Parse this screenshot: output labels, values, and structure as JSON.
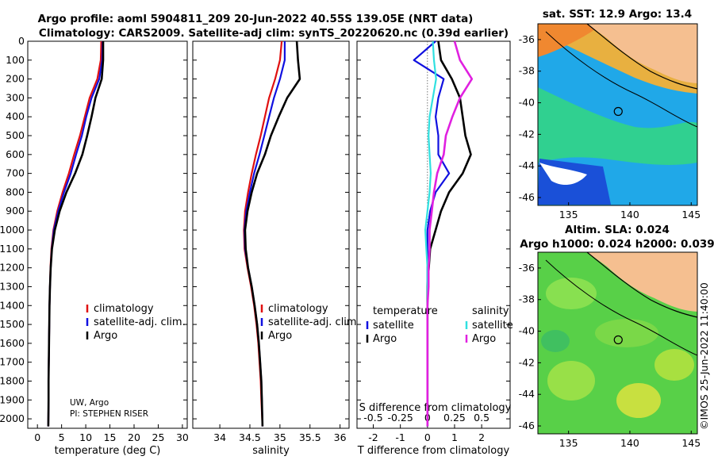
{
  "header": {
    "line1": "Argo profile: aoml 5904811_209 20-Jun-2022 40.55S 139.05E (NRT data)",
    "line2": "Climatology: CARS2009. Satellite-adj clim: synTS_20220620.nc (0.39d earlier)"
  },
  "credit": {
    "line1": "UW, Argo",
    "line2": "PI: STEPHEN RISER"
  },
  "timestamp": "©IMOS 25-Jun-2022 11:40:00",
  "colors": {
    "climatology": "#e01010",
    "satellite": "#1010e0",
    "argo": "#000000",
    "sat_s": "#30e0e0",
    "argo_s": "#e020e0"
  },
  "depth_ticks": [
    "0",
    "100",
    "200",
    "300",
    "400",
    "500",
    "600",
    "700",
    "800",
    "900",
    "1000",
    "1100",
    "1200",
    "1300",
    "1400",
    "1500",
    "1600",
    "1700",
    "1800",
    "1900",
    "2000"
  ],
  "chart_data": [
    {
      "type": "line",
      "xlabel": "temperature (deg C)",
      "xticks": [
        "0",
        "5",
        "10",
        "15",
        "20",
        "25",
        "30"
      ],
      "xlim": [
        -2,
        31
      ],
      "ylim": [
        2050,
        0
      ],
      "legend": [
        "climatology",
        "satellite-adj. clim.",
        "Argo"
      ],
      "series": [
        {
          "name": "climatology",
          "x": [
            13.2,
            13.1,
            12.4,
            10.8,
            9.8,
            8.8,
            7.6,
            6.5,
            5.2,
            4.1,
            3.3,
            2.9,
            2.7,
            2.6,
            2.5,
            2.45,
            2.4,
            2.35,
            2.3,
            2.3,
            2.25
          ],
          "y": [
            0,
            100,
            200,
            300,
            400,
            500,
            600,
            700,
            800,
            900,
            1000,
            1100,
            1200,
            1300,
            1400,
            1500,
            1600,
            1700,
            1800,
            1900,
            2040
          ]
        },
        {
          "name": "satellite-adj. clim.",
          "x": [
            13.5,
            13.4,
            12.8,
            11.2,
            10.1,
            9.2,
            8.0,
            6.9,
            5.5,
            4.3,
            3.4,
            2.95,
            2.75,
            2.6,
            2.5,
            2.45,
            2.4,
            2.35,
            2.3,
            2.3,
            2.25
          ],
          "y": [
            0,
            100,
            200,
            300,
            400,
            500,
            600,
            700,
            800,
            900,
            1000,
            1100,
            1200,
            1300,
            1400,
            1500,
            1600,
            1700,
            1800,
            1900,
            2040
          ]
        },
        {
          "name": "Argo",
          "x": [
            13.6,
            13.6,
            13.3,
            12.0,
            11.2,
            10.3,
            9.3,
            7.8,
            6.0,
            4.6,
            3.6,
            3.0,
            2.75,
            2.6,
            2.5,
            2.45,
            2.4,
            2.35,
            2.3,
            2.3,
            2.25
          ],
          "y": [
            0,
            100,
            200,
            300,
            400,
            500,
            600,
            700,
            800,
            900,
            1000,
            1100,
            1200,
            1300,
            1400,
            1500,
            1600,
            1700,
            1800,
            1900,
            2040
          ]
        }
      ]
    },
    {
      "type": "line",
      "xlabel": "salinity",
      "xticks": [
        "34",
        "34.5",
        "35",
        "35.5",
        "36"
      ],
      "xlim": [
        33.55,
        36.15
      ],
      "ylim": [
        2050,
        0
      ],
      "legend": [
        "climatology",
        "satellite-adj. clim.",
        "Argo"
      ],
      "series": [
        {
          "name": "climatology",
          "x": [
            35.03,
            35.0,
            34.92,
            34.82,
            34.75,
            34.68,
            34.6,
            34.53,
            34.47,
            34.42,
            34.4,
            34.41,
            34.46,
            34.52,
            34.57,
            34.61,
            34.64,
            34.66,
            34.68,
            34.69,
            34.71
          ],
          "y": [
            0,
            100,
            200,
            300,
            400,
            500,
            600,
            700,
            800,
            900,
            1000,
            1100,
            1200,
            1300,
            1400,
            1500,
            1600,
            1700,
            1800,
            1900,
            2040
          ]
        },
        {
          "name": "satellite-adj. clim.",
          "x": [
            35.08,
            35.08,
            35.0,
            34.9,
            34.82,
            34.74,
            34.66,
            34.57,
            34.5,
            34.44,
            34.41,
            34.42,
            34.47,
            34.53,
            34.58,
            34.62,
            34.65,
            34.67,
            34.69,
            34.7,
            34.71
          ],
          "y": [
            0,
            100,
            200,
            300,
            400,
            500,
            600,
            700,
            800,
            900,
            1000,
            1100,
            1200,
            1300,
            1400,
            1500,
            1600,
            1700,
            1800,
            1900,
            2040
          ]
        },
        {
          "name": "Argo",
          "x": [
            35.28,
            35.3,
            35.33,
            35.12,
            34.98,
            34.85,
            34.75,
            34.62,
            34.53,
            34.46,
            34.42,
            34.43,
            34.47,
            34.53,
            34.58,
            34.62,
            34.65,
            34.67,
            34.69,
            34.7,
            34.71
          ],
          "y": [
            0,
            100,
            200,
            300,
            400,
            500,
            600,
            700,
            800,
            900,
            1000,
            1100,
            1200,
            1300,
            1400,
            1500,
            1600,
            1700,
            1800,
            1900,
            2040
          ]
        }
      ]
    },
    {
      "type": "line",
      "xlabel": "T difference from climatology",
      "x2label": "S difference from climatology",
      "xticks": [
        "-2",
        "-1",
        "0",
        "1",
        "2"
      ],
      "x2ticks": [
        "-0.5",
        "-0.25",
        "0",
        "0.25",
        "0.5"
      ],
      "xlim": [
        -2.6,
        3.05
      ],
      "ylim": [
        2050,
        0
      ],
      "legend_titles": [
        "temperature",
        "salinity"
      ],
      "legend_t": [
        "satellite",
        "Argo"
      ],
      "legend_s": [
        "satellite",
        "Argo"
      ],
      "series": [
        {
          "name": "satellite",
          "axis": "temperature",
          "x": [
            0.3,
            -0.5,
            0.6,
            0.4,
            0.3,
            0.4,
            0.4,
            0.8,
            0.3,
            0.1,
            0.0,
            0.0,
            0.0,
            0.0,
            0.0,
            0.0,
            0.0,
            0.0,
            0.0,
            0.0,
            0.0
          ],
          "y": [
            0,
            100,
            200,
            300,
            400,
            500,
            600,
            700,
            800,
            900,
            1000,
            1100,
            1200,
            1300,
            1400,
            1500,
            1600,
            1700,
            1800,
            1900,
            2040
          ]
        },
        {
          "name": "Argo",
          "axis": "temperature",
          "x": [
            0.4,
            0.5,
            0.9,
            1.2,
            1.3,
            1.4,
            1.6,
            1.3,
            0.8,
            0.5,
            0.3,
            0.1,
            0.05,
            0.0,
            0.0,
            0.0,
            0.0,
            0.0,
            0.0,
            0.0,
            0.0
          ],
          "y": [
            0,
            100,
            200,
            300,
            400,
            500,
            600,
            700,
            800,
            900,
            1000,
            1100,
            1200,
            1300,
            1400,
            1500,
            1600,
            1700,
            1800,
            1900,
            2040
          ]
        },
        {
          "name": "satellite",
          "axis": "salinity",
          "x": [
            0.05,
            0.06,
            0.08,
            0.05,
            0.02,
            0.01,
            0.02,
            0.03,
            0.02,
            0.0,
            -0.02,
            -0.01,
            0.0,
            0.0,
            0.0,
            0.0,
            0.0,
            0.0,
            0.0,
            0.0,
            0.0
          ],
          "y": [
            0,
            100,
            200,
            300,
            400,
            500,
            600,
            700,
            800,
            900,
            1000,
            1100,
            1200,
            1300,
            1400,
            1500,
            1600,
            1700,
            1800,
            1900,
            2040
          ]
        },
        {
          "name": "Argo",
          "axis": "salinity",
          "x": [
            0.25,
            0.3,
            0.41,
            0.3,
            0.23,
            0.17,
            0.15,
            0.09,
            0.06,
            0.04,
            0.02,
            0.02,
            0.01,
            0.01,
            0.0,
            0.0,
            0.0,
            0.0,
            0.0,
            0.0,
            0.0
          ],
          "y": [
            0,
            100,
            200,
            300,
            400,
            500,
            600,
            700,
            800,
            900,
            1000,
            1100,
            1200,
            1300,
            1400,
            1500,
            1600,
            1700,
            1800,
            1900,
            2040
          ]
        }
      ]
    },
    {
      "type": "heatmap",
      "title": "sat. SST: 12.9 Argo: 13.4",
      "xticks": [
        "135",
        "140",
        "145"
      ],
      "yticks": [
        "-36",
        "-38",
        "-40",
        "-42",
        "-44",
        "-46"
      ],
      "xlim": [
        132.5,
        145.5
      ],
      "ylim": [
        -46.5,
        -35
      ],
      "float_position": {
        "lon": 139.05,
        "lat": -40.55
      }
    },
    {
      "type": "heatmap",
      "title": "Altim. SLA: 0.024",
      "subtitle": "Argo h1000: 0.024 h2000: 0.039",
      "xticks": [
        "135",
        "140",
        "145"
      ],
      "yticks": [
        "-36",
        "-38",
        "-40",
        "-42",
        "-44",
        "-46"
      ],
      "xlim": [
        132.5,
        145.5
      ],
      "ylim": [
        -46.5,
        -35
      ],
      "float_position": {
        "lon": 139.05,
        "lat": -40.55
      }
    }
  ]
}
